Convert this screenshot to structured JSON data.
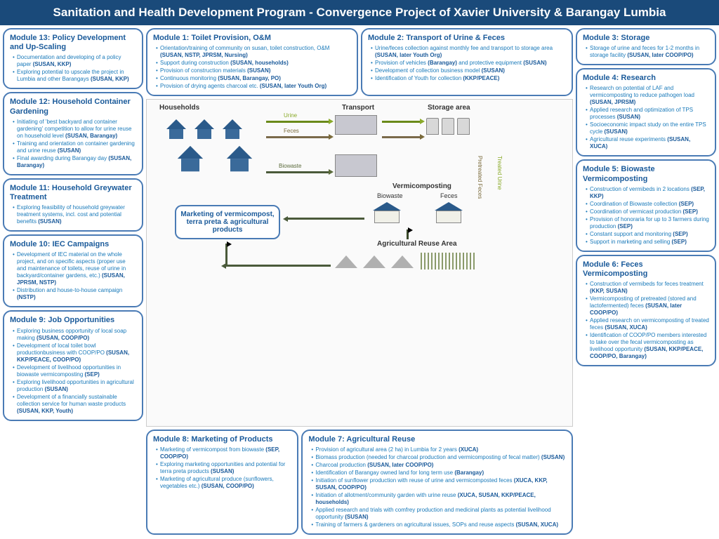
{
  "header": "Sanitation and Health Development Program - Convergence Project of Xavier University & Barangay Lumbia",
  "colors": {
    "header_bg": "#1a4a7a",
    "header_fg": "#ffffff",
    "border": "#4a7bb5",
    "title": "#1a5a9a",
    "bullet": "#1a7aba",
    "urine": "#a8c82a",
    "feces": "#8a7a4a",
    "biowaste": "#6a7a3a"
  },
  "diagram": {
    "labels": {
      "households": "Households",
      "transport": "Transport",
      "storage": "Storage area",
      "vermi": "Vermicomposting",
      "biowaste": "Biowaste",
      "feces_v": "Feces",
      "reuse": "Agricultural Reuse Area",
      "market": "Marketing of vermicompost, terra preta & agricultural products"
    },
    "flows": {
      "urine": "Urine",
      "feces": "Feces",
      "biowaste": "Biowaste",
      "pretreated": "Pretreated Feces",
      "treated": "Treated Urine"
    }
  },
  "m13": {
    "title": "Module 13: Policy Development and Up-Scaling",
    "items": [
      "Documentation and developing of a policy paper <b>(SUSAN, KKP)</b>",
      "Exploring potential to upscale the project in Lumbia and other Barangays <b>(SUSAN, KKP)</b>"
    ]
  },
  "m12": {
    "title": "Module 12: Household Container Gardening",
    "items": [
      "Initiating of 'best backyard and container gardening' competition to allow for urine reuse on household level <b>(SUSAN, Barangay)</b>",
      "Training and orientation on container gardening and urine reuse <b>(SUSAN)</b>",
      "Final awarding during Barangay day <b>(SUSAN, Barangay)</b>"
    ]
  },
  "m11": {
    "title": "Module 11: Household Greywater Treatment",
    "items": [
      "Exploring feasibility of household greywater treatment systems, incl. cost and potential benefits <b>(SUSAN)</b>"
    ]
  },
  "m10": {
    "title": "Module 10: IEC Campaigns",
    "items": [
      "Development of IEC material on the whole project, and on specific aspects (proper use and maintenance of toilets, reuse of urine in backyard/container gardens, etc.) <b>(SUSAN, JPRSM, NSTP)</b>",
      "Distribution and house-to-house campaign <b>(NSTP)</b>"
    ]
  },
  "m9": {
    "title": "Module 9: Job Opportunities",
    "items": [
      "Exploring business opportunity of local soap making <b>(SUSAN, COOP/PO)</b>",
      "Development of local toilet bowl productionbusiness with COOP/PO <b>(SUSAN, KKP/PEACE, COOP/PO)</b>",
      "Development of livelihood opportunities in biowaste vermicomposting <b>(SEP)</b>",
      "Exploring livelihood opportunities in agricultural production <b>(SUSAN)</b>",
      "Development of a financially sustainable collection service for human waste products <b>(SUSAN, KKP, Youth)</b>"
    ]
  },
  "m1": {
    "title": "Module 1: Toilet Provision, O&M",
    "items": [
      "Orientation/training of community on susan, toilet construction, O&M <b>(SUSAN, NSTP, JPRSM, Nursing)</b>",
      "Support during construction <b>(SUSAN, households)</b>",
      "Provision of construction materials <b>(SUSAN)</b>",
      "Continuous monitoring <b>(SUSAN, Barangay, PO)</b>",
      "Provision of drying agents charcoal etc. <b>(SUSAN, later Youth Org)</b>"
    ]
  },
  "m2": {
    "title": "Module 2: Transport of Urine & Feces",
    "items": [
      "Urine/feces collection against monthly fee and transport to storage area <b>(SUSAN, later Youth Org)</b>",
      "Provision of vehicles <b>(Barangay)</b> and protective equipment <b>(SUSAN)</b>",
      "Development of collection business model <b>(SUSAN)</b>",
      "Identification of Youth for collection <b>(KKP/PEACE)</b>"
    ]
  },
  "m8": {
    "title": "Module 8: Marketing of Products",
    "items": [
      "Marketing of vermicompost from biowaste <b>(SEP, COOP/PO)</b>",
      "Exploring marketing opportunities and potential for terra preta products <b>(SUSAN)</b>",
      "Marketing of agricultural produce (sunflowers, vegetables etc.) <b>(SUSAN, COOP/PO)</b>"
    ]
  },
  "m7": {
    "title": "Module 7: Agricultural Reuse",
    "items": [
      "Provision of agricultural area (2 ha) in Lumbia for 2 years <b>(XUCA)</b>",
      "Biomass production (needed for charcoal production and vermicomposting of fecal matter) <b>(SUSAN)</b>",
      "Charcoal production <b>(SUSAN, later COOP/PO)</b>",
      "Identification of Barangay owned land for long term use <b>(Barangay)</b>",
      "Initiation of sunflower production with reuse of urine and vermicomposted feces <b>(XUCA, KKP, SUSAN, COOP/PO)</b>",
      "Initiation of allotment/community garden with urine reuse <b>(XUCA, SUSAN, KKP/PEACE, households)</b>",
      "Applied research and trials with comfrey production and medicinal plants as potential livelihood opportunity <b>(SUSAN)</b>",
      "Training of farmers & gardeners on agricultural issues, SOPs and reuse aspects <b>(SUSAN, XUCA)</b>"
    ]
  },
  "m3": {
    "title": "Module 3: Storage",
    "items": [
      "Storage of urine and feces for 1-2 months in storage facility <b>(SUSAN, later COOP/PO)</b>"
    ]
  },
  "m4": {
    "title": "Module 4: Research",
    "items": [
      "Research on potential of LAF and vermicomposting to reduce pathogen load <b>(SUSAN, JPRSM)</b>",
      "Applied research and optimization of TPS processes <b>(SUSAN)</b>",
      "Socioeconomic impact study on the entire TPS cycle <b>(SUSAN)</b>",
      "Agricultural reuse experiments <b>(SUSAN, XUCA)</b>"
    ]
  },
  "m5": {
    "title": "Module 5: Biowaste Vermicomposting",
    "items": [
      "Construction of vermibeds in 2 locations <b>(SEP, KKP)</b>",
      "Coordination of Biowaste collection <b>(SEP)</b>",
      "Coordination of vermicast production <b>(SEP)</b>",
      "Provision of honoraria for up to 3 farmers during production <b>(SEP)</b>",
      "Constant support and monitoring <b>(SEP)</b>",
      "Support in marketing and selling <b>(SEP)</b>"
    ]
  },
  "m6": {
    "title": "Module 6: Feces Vermicomposting",
    "items": [
      "Construction of vermibeds for feces treatment <b>(KKP, SUSAN)</b>",
      "Vermicomposting of pretreated (stored and lactofermented) feces <b>(SUSAN, later COOP/PO)</b>",
      "Applied research on vermicomposting of treated feces <b>(SUSAN, XUCA)</b>",
      "Identification of COOP/PO members interested to take over the fecal vermicomposting as livelihood opportunity <b>(SUSAN, KKP/PEACE, COOP/PO, Barangay)</b>"
    ]
  }
}
